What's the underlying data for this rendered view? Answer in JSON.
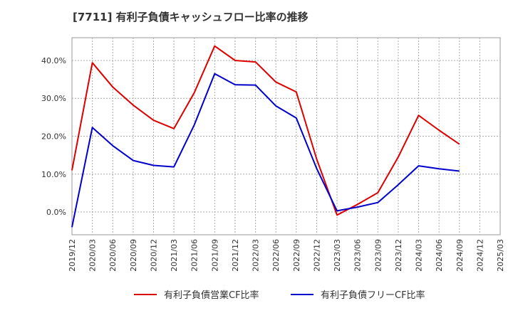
{
  "chart_data": {
    "type": "line",
    "title": "[7711]  有利子負債キャッシュフロー比率の推移",
    "x": [
      "2019/12",
      "2020/03",
      "2020/06",
      "2020/09",
      "2020/12",
      "2021/03",
      "2021/06",
      "2021/09",
      "2021/12",
      "2022/03",
      "2022/06",
      "2022/09",
      "2022/12",
      "2023/03",
      "2023/06",
      "2023/09",
      "2023/12",
      "2024/03",
      "2024/06",
      "2024/09",
      "2024/12",
      "2025/03"
    ],
    "ylim": [
      -6,
      46
    ],
    "yticks": [
      0,
      10,
      20,
      30,
      40
    ],
    "ytick_labels": [
      "0.0%",
      "10.0%",
      "20.0%",
      "30.0%",
      "40.0%"
    ],
    "grid": true,
    "legend_position": "bottom",
    "series": [
      {
        "name": "有利子負債営業CF比率",
        "color": "#dd0000",
        "values": [
          11.0,
          39.4,
          33.0,
          28.2,
          24.2,
          22.0,
          31.5,
          43.8,
          40.0,
          39.6,
          34.3,
          31.7,
          14.0,
          -0.8,
          2.0,
          5.1,
          14.5,
          25.5,
          21.6,
          17.9,
          null,
          null
        ]
      },
      {
        "name": "有利子負債フリーCF比率",
        "color": "#0000cc",
        "values": [
          -4.0,
          22.3,
          17.5,
          13.6,
          12.3,
          11.9,
          23.0,
          36.5,
          33.6,
          33.5,
          28.0,
          24.8,
          11.5,
          0.3,
          1.3,
          2.5,
          7.2,
          12.2,
          11.4,
          10.8,
          null,
          null
        ]
      }
    ]
  }
}
